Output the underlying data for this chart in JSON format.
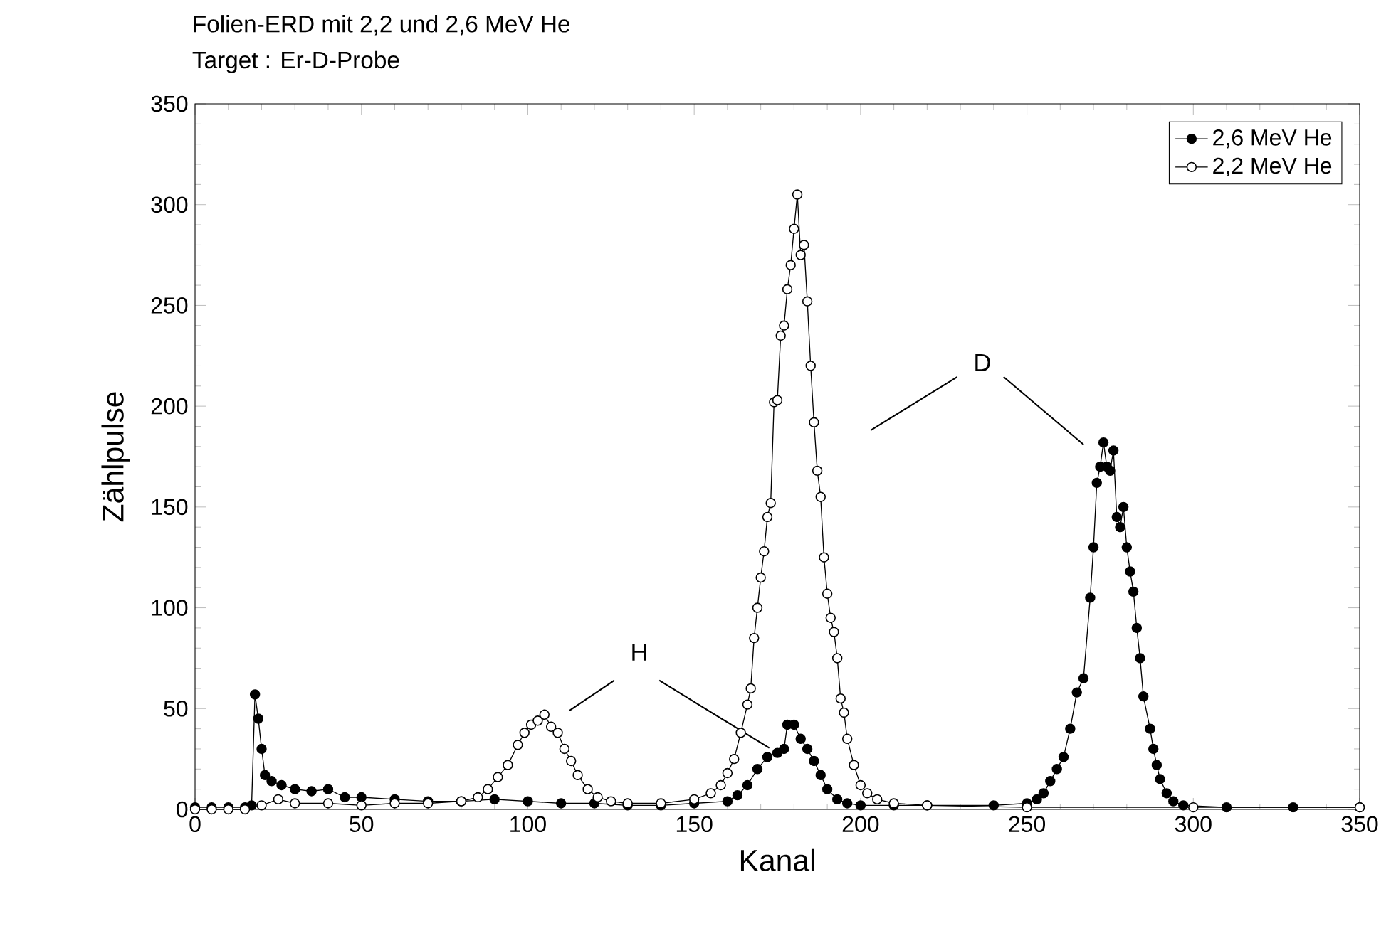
{
  "chart_data": {
    "type": "line",
    "title": "Folien-ERD mit 2,2 und 2,6 MeV He",
    "subtitle": "Target : Er-D-Probe",
    "xlabel": "Kanal",
    "ylabel": "Zählpulse",
    "annotations": [
      {
        "text": "H",
        "x": 175,
        "y": 28
      },
      "D"
    ],
    "xlim": [
      0,
      350
    ],
    "xticks": [
      0,
      50,
      100,
      150,
      200,
      250,
      300,
      350
    ],
    "ylim": [
      0,
      350
    ],
    "yticks": [
      0,
      50,
      100,
      150,
      200,
      250,
      300,
      350
    ],
    "legend": "top right",
    "marker": "circle",
    "line_style": "solid",
    "series": [
      {
        "name": "2,6 MeV He",
        "color": "#000000",
        "x": [
          0,
          5,
          10,
          15,
          17,
          18,
          19,
          20,
          21,
          23,
          26,
          30,
          35,
          40,
          45,
          50,
          60,
          70,
          80,
          90,
          100,
          110,
          120,
          130,
          140,
          150,
          160,
          163,
          166,
          169,
          172,
          175,
          177,
          178,
          180,
          182,
          184,
          186,
          188,
          190,
          193,
          196,
          200,
          210,
          220,
          240,
          250,
          253,
          255,
          257,
          259,
          261,
          263,
          265,
          267,
          269,
          270,
          271,
          272,
          273,
          274,
          275,
          276,
          277,
          278,
          279,
          280,
          281,
          282,
          283,
          284,
          285,
          287,
          288,
          289,
          290,
          292,
          294,
          297,
          310,
          330,
          350
        ],
        "values": [
          1,
          1,
          1,
          1,
          2,
          57,
          45,
          30,
          17,
          14,
          12,
          10,
          9,
          10,
          6,
          6,
          5,
          4,
          4,
          5,
          4,
          3,
          3,
          2,
          2,
          3,
          4,
          7,
          12,
          20,
          26,
          28,
          30,
          42,
          42,
          35,
          30,
          24,
          17,
          10,
          5,
          3,
          2,
          2,
          2,
          2,
          3,
          5,
          8,
          14,
          20,
          26,
          40,
          58,
          65,
          105,
          130,
          162,
          170,
          182,
          170,
          168,
          178,
          145,
          140,
          150,
          130,
          118,
          108,
          90,
          75,
          56,
          40,
          30,
          22,
          15,
          8,
          4,
          2,
          1,
          1,
          1
        ]
      },
      {
        "name": "2,2 MeV He",
        "color": "#000000",
        "x": [
          0,
          5,
          10,
          15,
          20,
          25,
          30,
          40,
          50,
          60,
          70,
          80,
          85,
          88,
          91,
          94,
          97,
          99,
          101,
          103,
          105,
          107,
          109,
          111,
          113,
          115,
          118,
          121,
          125,
          130,
          140,
          150,
          155,
          158,
          160,
          162,
          164,
          166,
          167,
          168,
          169,
          170,
          171,
          172,
          173,
          174,
          175,
          176,
          177,
          178,
          179,
          180,
          181,
          182,
          183,
          184,
          185,
          186,
          187,
          188,
          189,
          190,
          191,
          192,
          193,
          194,
          195,
          196,
          198,
          200,
          202,
          205,
          210,
          220,
          250,
          300,
          350
        ],
        "values": [
          0,
          0,
          0,
          0,
          2,
          5,
          3,
          3,
          2,
          3,
          3,
          4,
          6,
          10,
          16,
          22,
          32,
          38,
          42,
          44,
          47,
          41,
          38,
          30,
          24,
          17,
          10,
          6,
          4,
          3,
          3,
          5,
          8,
          12,
          18,
          25,
          38,
          52,
          60,
          85,
          100,
          115,
          128,
          145,
          152,
          202,
          203,
          235,
          240,
          258,
          270,
          288,
          305,
          275,
          280,
          252,
          220,
          192,
          168,
          155,
          125,
          107,
          95,
          88,
          75,
          55,
          48,
          35,
          22,
          12,
          8,
          5,
          3,
          2,
          1,
          1,
          1
        ]
      }
    ]
  }
}
